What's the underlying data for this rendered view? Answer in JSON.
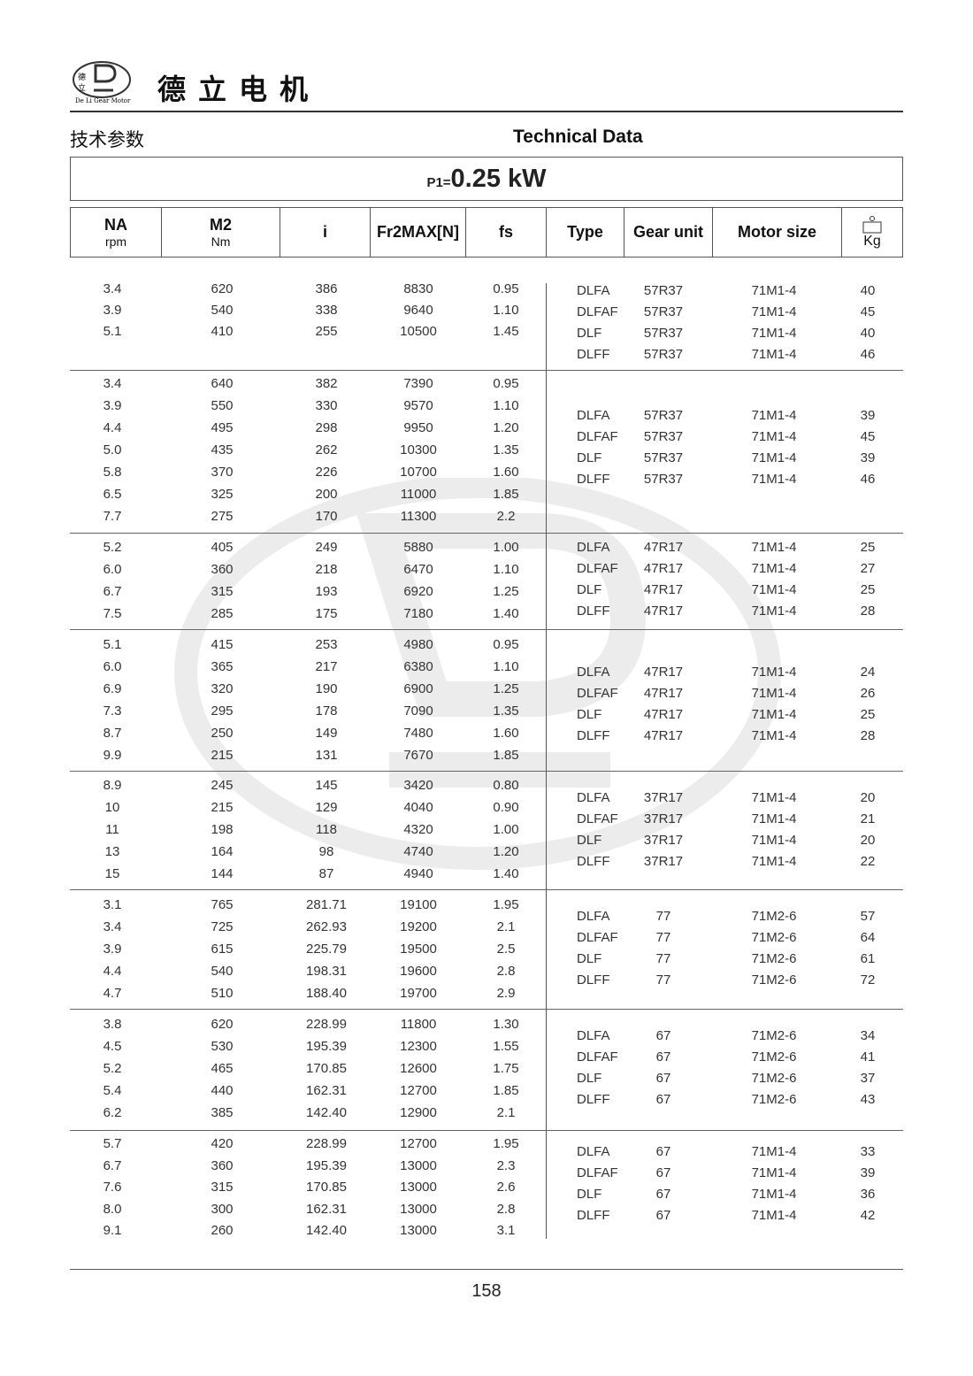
{
  "header": {
    "brand_cn": "德立电机",
    "logo_text": "De Li Gear Motor",
    "logo_chars": "德立",
    "title_cn": "技术参数",
    "title_en": "Technical Data"
  },
  "power": {
    "label": "P1=",
    "value": "0.25 kW"
  },
  "columns": {
    "na": {
      "label": "NA",
      "unit": "rpm"
    },
    "m2": {
      "label": "M2",
      "unit": "Nm"
    },
    "i": {
      "label": "i"
    },
    "fr": {
      "label": "Fr2MAX[N]"
    },
    "fs": {
      "label": "fs"
    },
    "type": {
      "label": "Type"
    },
    "gear": {
      "label": "Gear unit"
    },
    "motor": {
      "label": "Motor size"
    },
    "kg": {
      "label": "Kg",
      "icon": "weight-icon"
    }
  },
  "groups": [
    {
      "rows": [
        [
          "3.4",
          "620",
          "386",
          "8830",
          "0.95"
        ],
        [
          "3.9",
          "540",
          "338",
          "9640",
          "1.10"
        ],
        [
          "5.1",
          "410",
          "255",
          "10500",
          "1.45"
        ]
      ],
      "types": [
        [
          "DLFA",
          "57R37",
          "71M1-4",
          "40"
        ],
        [
          "DLFAF",
          "57R37",
          "71M1-4",
          "45"
        ],
        [
          "DLF",
          "57R37",
          "71M1-4",
          "40"
        ],
        [
          "DLFF",
          "57R37",
          "71M1-4",
          "46"
        ]
      ]
    },
    {
      "rows": [
        [
          "3.4",
          "640",
          "382",
          "7390",
          "0.95"
        ],
        [
          "3.9",
          "550",
          "330",
          "9570",
          "1.10"
        ],
        [
          "4.4",
          "495",
          "298",
          "9950",
          "1.20"
        ],
        [
          "5.0",
          "435",
          "262",
          "10300",
          "1.35"
        ],
        [
          "5.8",
          "370",
          "226",
          "10700",
          "1.60"
        ],
        [
          "6.5",
          "325",
          "200",
          "11000",
          "1.85"
        ],
        [
          "7.7",
          "275",
          "170",
          "11300",
          "2.2"
        ]
      ],
      "types": [
        [
          "DLFA",
          "57R37",
          "71M1-4",
          "39"
        ],
        [
          "DLFAF",
          "57R37",
          "71M1-4",
          "45"
        ],
        [
          "DLF",
          "57R37",
          "71M1-4",
          "39"
        ],
        [
          "DLFF",
          "57R37",
          "71M1-4",
          "46"
        ]
      ]
    },
    {
      "rows": [
        [
          "5.2",
          "405",
          "249",
          "5880",
          "1.00"
        ],
        [
          "6.0",
          "360",
          "218",
          "6470",
          "1.10"
        ],
        [
          "6.7",
          "315",
          "193",
          "6920",
          "1.25"
        ],
        [
          "7.5",
          "285",
          "175",
          "7180",
          "1.40"
        ]
      ],
      "types": [
        [
          "DLFA",
          "47R17",
          "71M1-4",
          "25"
        ],
        [
          "DLFAF",
          "47R17",
          "71M1-4",
          "27"
        ],
        [
          "DLF",
          "47R17",
          "71M1-4",
          "25"
        ],
        [
          "DLFF",
          "47R17",
          "71M1-4",
          "28"
        ]
      ]
    },
    {
      "rows": [
        [
          "5.1",
          "415",
          "253",
          "4980",
          "0.95"
        ],
        [
          "6.0",
          "365",
          "217",
          "6380",
          "1.10"
        ],
        [
          "6.9",
          "320",
          "190",
          "6900",
          "1.25"
        ],
        [
          "7.3",
          "295",
          "178",
          "7090",
          "1.35"
        ],
        [
          "8.7",
          "250",
          "149",
          "7480",
          "1.60"
        ],
        [
          "9.9",
          "215",
          "131",
          "7670",
          "1.85"
        ]
      ],
      "types": [
        [
          "DLFA",
          "47R17",
          "71M1-4",
          "24"
        ],
        [
          "DLFAF",
          "47R17",
          "71M1-4",
          "26"
        ],
        [
          "DLF",
          "47R17",
          "71M1-4",
          "25"
        ],
        [
          "DLFF",
          "47R17",
          "71M1-4",
          "28"
        ]
      ]
    },
    {
      "rows": [
        [
          "8.9",
          "245",
          "145",
          "3420",
          "0.80"
        ],
        [
          "10",
          "215",
          "129",
          "4040",
          "0.90"
        ],
        [
          "11",
          "198",
          "118",
          "4320",
          "1.00"
        ],
        [
          "13",
          "164",
          "98",
          "4740",
          "1.20"
        ],
        [
          "15",
          "144",
          "87",
          "4940",
          "1.40"
        ]
      ],
      "types": [
        [
          "DLFA",
          "37R17",
          "71M1-4",
          "20"
        ],
        [
          "DLFAF",
          "37R17",
          "71M1-4",
          "21"
        ],
        [
          "DLF",
          "37R17",
          "71M1-4",
          "20"
        ],
        [
          "DLFF",
          "37R17",
          "71M1-4",
          "22"
        ]
      ]
    },
    {
      "rows": [
        [
          "3.1",
          "765",
          "281.71",
          "19100",
          "1.95"
        ],
        [
          "3.4",
          "725",
          "262.93",
          "19200",
          "2.1"
        ],
        [
          "3.9",
          "615",
          "225.79",
          "19500",
          "2.5"
        ],
        [
          "4.4",
          "540",
          "198.31",
          "19600",
          "2.8"
        ],
        [
          "4.7",
          "510",
          "188.40",
          "19700",
          "2.9"
        ]
      ],
      "types": [
        [
          "DLFA",
          "77",
          "71M2-6",
          "57"
        ],
        [
          "DLFAF",
          "77",
          "71M2-6",
          "64"
        ],
        [
          "DLF",
          "77",
          "71M2-6",
          "61"
        ],
        [
          "DLFF",
          "77",
          "71M2-6",
          "72"
        ]
      ]
    },
    {
      "rows": [
        [
          "3.8",
          "620",
          "228.99",
          "11800",
          "1.30"
        ],
        [
          "4.5",
          "530",
          "195.39",
          "12300",
          "1.55"
        ],
        [
          "5.2",
          "465",
          "170.85",
          "12600",
          "1.75"
        ],
        [
          "5.4",
          "440",
          "162.31",
          "12700",
          "1.85"
        ],
        [
          "6.2",
          "385",
          "142.40",
          "12900",
          "2.1"
        ]
      ],
      "types": [
        [
          "DLFA",
          "67",
          "71M2-6",
          "34"
        ],
        [
          "DLFAF",
          "67",
          "71M2-6",
          "41"
        ],
        [
          "DLF",
          "67",
          "71M2-6",
          "37"
        ],
        [
          "DLFF",
          "67",
          "71M2-6",
          "43"
        ]
      ]
    },
    {
      "rows": [
        [
          "5.7",
          "420",
          "228.99",
          "12700",
          "1.95"
        ],
        [
          "6.7",
          "360",
          "195.39",
          "13000",
          "2.3"
        ],
        [
          "7.6",
          "315",
          "170.85",
          "13000",
          "2.6"
        ],
        [
          "8.0",
          "300",
          "162.31",
          "13000",
          "2.8"
        ],
        [
          "9.1",
          "260",
          "142.40",
          "13000",
          "3.1"
        ]
      ],
      "types": [
        [
          "DLFA",
          "67",
          "71M1-4",
          "33"
        ],
        [
          "DLFAF",
          "67",
          "71M1-4",
          "39"
        ],
        [
          "DLF",
          "67",
          "71M1-4",
          "36"
        ],
        [
          "DLFF",
          "67",
          "71M1-4",
          "42"
        ]
      ]
    }
  ],
  "footer": {
    "page_number": "158"
  },
  "watermark": {
    "text": "De Li Gear Motor",
    "chars": "德立"
  }
}
